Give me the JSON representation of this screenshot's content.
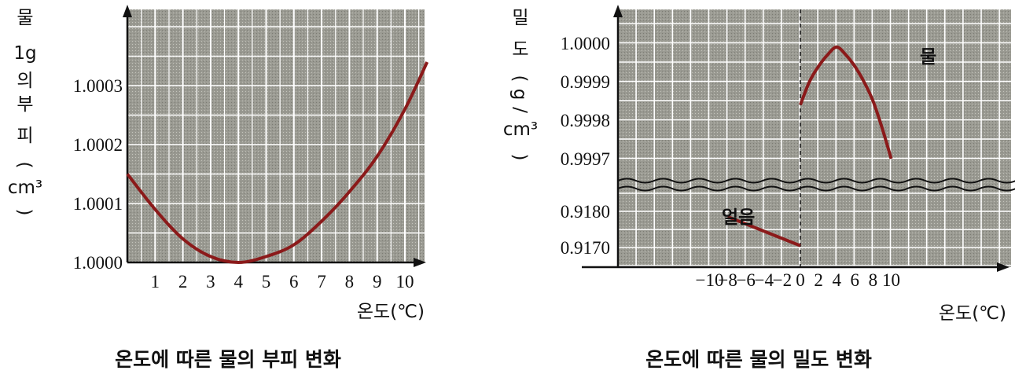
{
  "colors": {
    "curve": "#8b1a1a",
    "grid_bg": "#9a9a92",
    "grid_line": "#ffffff",
    "axis": "#111111"
  },
  "chart_data": [
    {
      "type": "line",
      "title": "온도에 따른 물의 부피 변화",
      "ylabel": "물 1g의 부피(cm³)",
      "ylabel_chars": [
        "물",
        "1g",
        "의",
        "부",
        "피",
        "(",
        "cm³",
        ")"
      ],
      "xlabel": "온도(℃)",
      "x_ticks": [
        "1",
        "2",
        "3",
        "4",
        "5",
        "6",
        "7",
        "8",
        "9",
        "10"
      ],
      "y_ticks": [
        "1.0000",
        "1.0001",
        "1.0002",
        "1.0003"
      ],
      "xlim": [
        0,
        11
      ],
      "ylim": [
        1.0,
        1.00035
      ],
      "grid": true,
      "series": [
        {
          "x": [
            0,
            1,
            2,
            3,
            4,
            5,
            6,
            7,
            8,
            9,
            10,
            10.8
          ],
          "y": [
            1.00015,
            1.00009,
            1.00004,
            1.00001,
            1.0,
            1.00001,
            1.00003,
            1.00007,
            1.00012,
            1.00018,
            1.00026,
            1.00034
          ]
        }
      ]
    },
    {
      "type": "line",
      "title": "온도에 따른 물의 밀도 변화",
      "ylabel": "밀도(g/cm³)",
      "ylabel_chars": [
        "밀",
        "도",
        "(",
        "g",
        "/",
        "cm³",
        ")"
      ],
      "xlabel": "온도(℃)",
      "x_ticks": [
        "−10",
        "−8",
        "−6",
        "−4",
        "−2",
        "0",
        "2",
        "4",
        "6",
        "8",
        "10"
      ],
      "y_ticks_upper": [
        "1.0000",
        "0.9999",
        "0.9998",
        "0.9997"
      ],
      "y_ticks_lower": [
        "0.9180",
        "0.9170"
      ],
      "xlim": [
        -10,
        11
      ],
      "ylim_upper": [
        0.99965,
        1.00005
      ],
      "ylim_lower": [
        0.9165,
        0.9185
      ],
      "axis_break": true,
      "grid": true,
      "series": [
        {
          "name": "물",
          "x": [
            0,
            1,
            2,
            3,
            4,
            5,
            6,
            7,
            8,
            9,
            10
          ],
          "y": [
            0.99984,
            0.9999,
            0.99994,
            0.99997,
            0.99999,
            0.99997,
            0.99994,
            0.9999,
            0.99985,
            0.99978,
            0.9997
          ]
        },
        {
          "name": "얼음",
          "x": [
            -8,
            0
          ],
          "y": [
            0.91785,
            0.91705
          ]
        }
      ]
    }
  ]
}
